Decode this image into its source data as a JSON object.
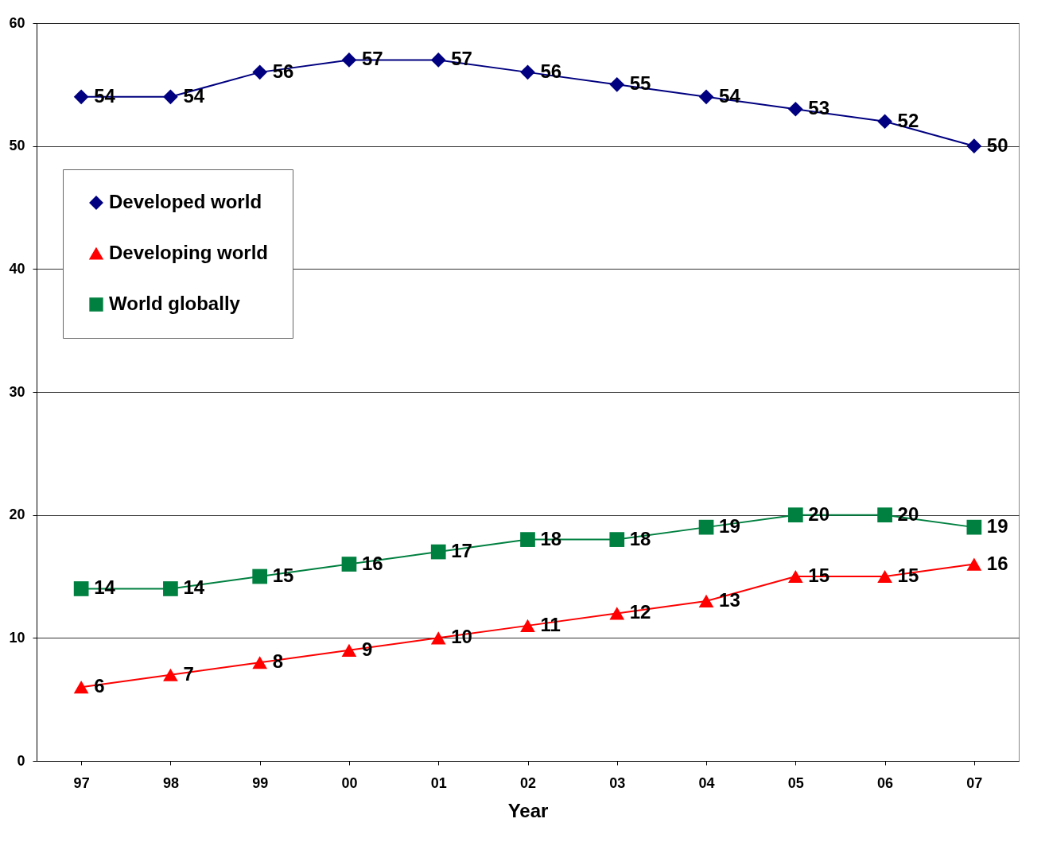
{
  "chart_data": {
    "type": "line",
    "xlabel": "Year",
    "categories": [
      "97",
      "98",
      "99",
      "00",
      "01",
      "02",
      "03",
      "04",
      "05",
      "06",
      "07"
    ],
    "series": [
      {
        "name": "Developed world",
        "color": "#000080",
        "marker": "diamond",
        "values": [
          54,
          54,
          56,
          57,
          57,
          56,
          55,
          54,
          53,
          52,
          50
        ]
      },
      {
        "name": "Developing world",
        "color": "#ff0000",
        "marker": "triangle",
        "values": [
          6,
          7,
          8,
          9,
          10,
          11,
          12,
          13,
          15,
          15,
          16
        ]
      },
      {
        "name": "World globally",
        "color": "#008040",
        "marker": "square",
        "values": [
          14,
          14,
          15,
          16,
          17,
          18,
          18,
          19,
          20,
          20,
          19
        ]
      }
    ],
    "ylim": [
      0,
      60
    ],
    "yticks": [
      0,
      10,
      20,
      30,
      40,
      50,
      60
    ],
    "grid": "y",
    "legend": "top left",
    "data_labels": true,
    "line_style": "solid"
  }
}
